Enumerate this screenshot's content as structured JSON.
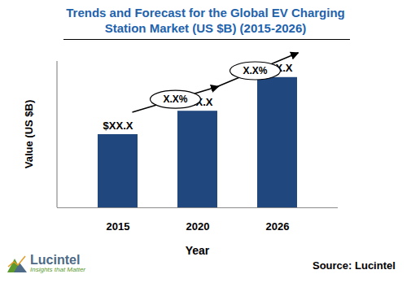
{
  "chart_data": {
    "type": "bar",
    "title": "Trends and Forecast for the Global EV Charging Station Market (US $B) (2015-2026)",
    "x_label": "Year",
    "y_label": "Value (US $B)",
    "categories": [
      "2015",
      "2020",
      "2026"
    ],
    "values": [
      50,
      66,
      89
    ],
    "value_labels": [
      "$XX.X",
      "$XX.X",
      "$XX.X"
    ],
    "data_labels": true,
    "color": "#21487e",
    "ylim": [
      0,
      100
    ],
    "tick_labels": "x",
    "annotations": [
      {
        "from": "2015",
        "to": "2020",
        "text": "X.X%"
      },
      {
        "from": "2020",
        "to": "2026",
        "text": "X.X%"
      }
    ],
    "source": "Source: Lucintel",
    "logo": {
      "name": "Lucintel",
      "tagline": "Insights that Matter"
    }
  }
}
